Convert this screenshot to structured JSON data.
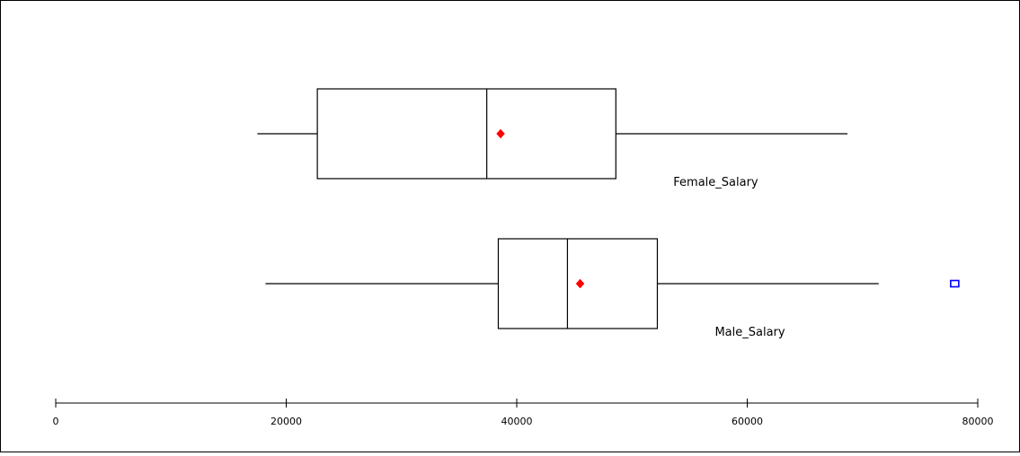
{
  "chart_data": {
    "type": "boxplot",
    "orientation": "horizontal",
    "title": "",
    "xlabel": "",
    "ylabel": "",
    "xlim": [
      0,
      80000
    ],
    "x_ticks": [
      {
        "value": 0,
        "label": "0"
      },
      {
        "value": 20000,
        "label": "20000"
      },
      {
        "value": 40000,
        "label": "40000"
      },
      {
        "value": 60000,
        "label": "60000"
      },
      {
        "value": 80000,
        "label": "80000"
      }
    ],
    "grid": false,
    "series": [
      {
        "name": "Female_Salary",
        "whisker_low": 17500,
        "q1": 22700,
        "median": 37400,
        "q3": 48600,
        "whisker_high": 68700,
        "mean": 38600,
        "outliers": []
      },
      {
        "name": "Male_Salary",
        "whisker_low": 18200,
        "q1": 38400,
        "median": 44400,
        "q3": 52200,
        "whisker_high": 71400,
        "mean": 45500,
        "outliers": [
          78000
        ]
      }
    ],
    "colors": {
      "box": "#000000",
      "mean_marker": "#ff0000",
      "outlier_marker": "#0000ff",
      "frame": "#000000"
    }
  }
}
